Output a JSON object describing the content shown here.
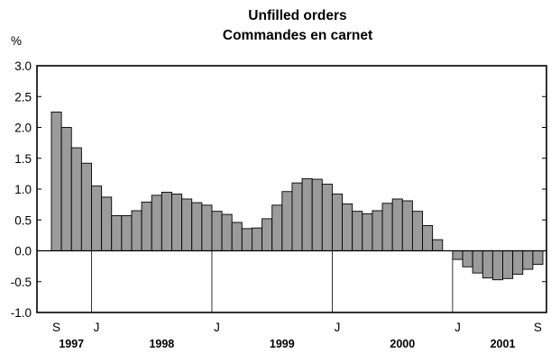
{
  "chart_data": {
    "type": "bar",
    "title": [
      "Unfilled orders",
      "Commandes en carnet"
    ],
    "ylabel": "%",
    "xlabel": "",
    "ylim": [
      -1.0,
      3.0
    ],
    "yticks": [
      "3.0",
      "2.5",
      "2.0",
      "1.5",
      "1.0",
      "0.5",
      "0.0",
      "-0.5",
      "-1.0"
    ],
    "ytick_values": [
      3.0,
      2.5,
      2.0,
      1.5,
      1.0,
      0.5,
      0.0,
      -0.5,
      -1.0
    ],
    "grid": false,
    "bar_color": "#9b9b9b",
    "start": "1997-09",
    "end": "2001-09",
    "values": [
      2.25,
      2.0,
      1.67,
      1.42,
      1.05,
      0.87,
      0.57,
      0.57,
      0.65,
      0.79,
      0.9,
      0.95,
      0.92,
      0.84,
      0.78,
      0.74,
      0.64,
      0.59,
      0.46,
      0.36,
      0.37,
      0.52,
      0.74,
      0.96,
      1.1,
      1.17,
      1.16,
      1.08,
      0.92,
      0.76,
      0.64,
      0.6,
      0.65,
      0.77,
      0.84,
      0.81,
      0.64,
      0.41,
      0.18,
      0.0,
      -0.14,
      -0.26,
      -0.36,
      -0.44,
      -0.47,
      -0.45,
      -0.38,
      -0.3,
      -0.22
    ],
    "month_labels": [
      {
        "label": "S",
        "index": 0
      },
      {
        "label": "J",
        "index": 4
      },
      {
        "label": "J",
        "index": 16
      },
      {
        "label": "J",
        "index": 28
      },
      {
        "label": "J",
        "index": 40
      },
      {
        "label": "S",
        "index": 48
      }
    ],
    "year_labels": [
      {
        "label": "1997",
        "center_index": 1.5
      },
      {
        "label": "1998",
        "center_index": 10.5
      },
      {
        "label": "1999",
        "center_index": 22.5
      },
      {
        "label": "2000",
        "center_index": 34.5
      },
      {
        "label": "2001",
        "center_index": 44.5
      }
    ],
    "january_markers": [
      4,
      16,
      28,
      40
    ]
  }
}
